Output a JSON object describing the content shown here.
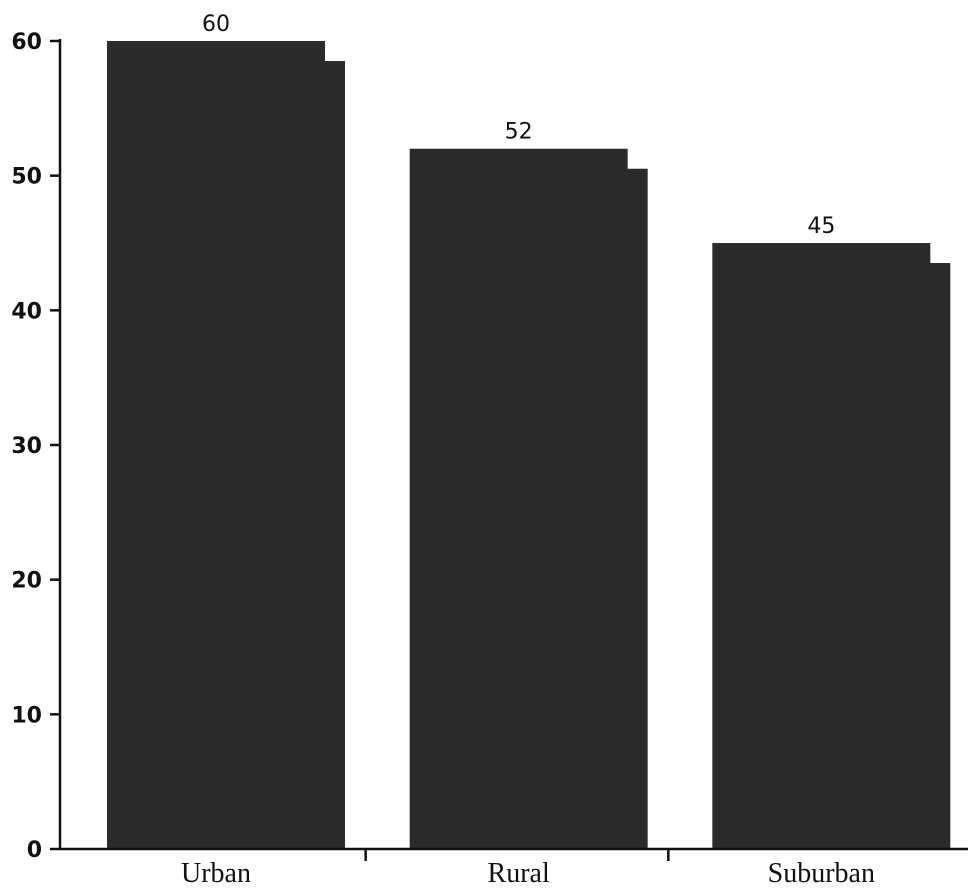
{
  "chart_data": {
    "type": "bar",
    "categories": [
      "Urban",
      "Rural",
      "Suburban"
    ],
    "values": [
      60,
      52,
      45
    ],
    "data_labels": [
      "60",
      "52",
      "45"
    ],
    "title": "",
    "xlabel": "",
    "ylabel": "",
    "ylim": [
      0,
      60
    ],
    "yticks": [
      "0",
      "10",
      "20",
      "30",
      "40",
      "50",
      "60"
    ],
    "grid": false,
    "legend": "none",
    "bar_color": "#2b2b2b"
  }
}
